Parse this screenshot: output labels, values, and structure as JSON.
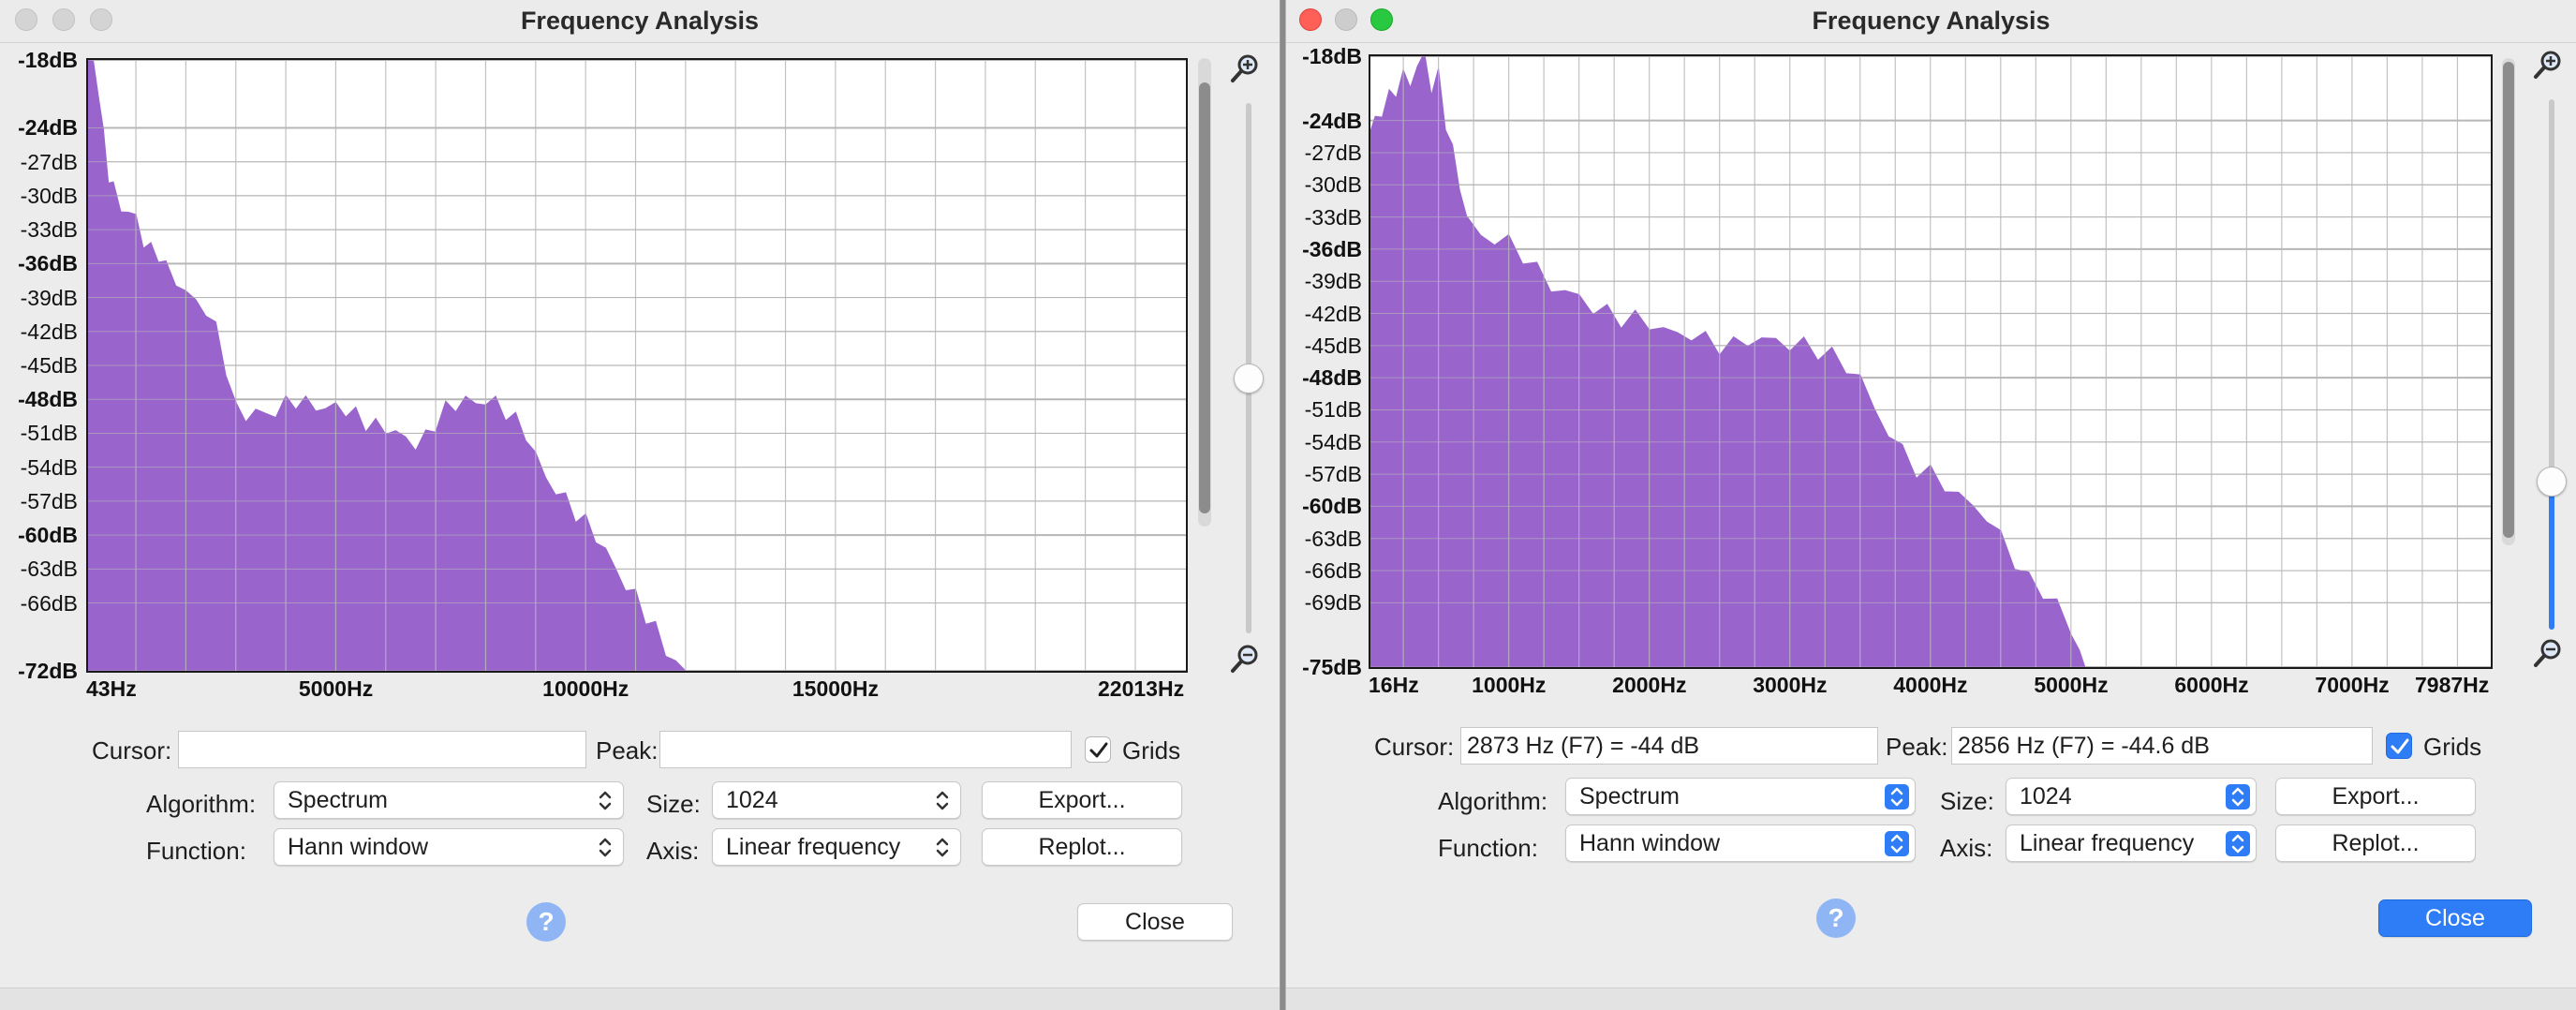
{
  "colors": {
    "spectrum": "#9a64cd",
    "grid": "#b7b7b7",
    "accent": "#2f7df6",
    "close_red": "#fe5f57",
    "max_green": "#28c840"
  },
  "windows": [
    {
      "title": "Frequency Analysis",
      "active": false,
      "controls": {
        "cursor_label": "Cursor:",
        "cursor_value": "",
        "peak_label": "Peak:",
        "peak_value": "",
        "grids_label": "Grids",
        "grids_checked": true,
        "algorithm_label": "Algorithm:",
        "algorithm_value": "Spectrum",
        "function_label": "Function:",
        "function_value": "Hann window",
        "size_label": "Size:",
        "size_value": "1024",
        "axis_label": "Axis:",
        "axis_value": "Linear frequency",
        "export_button": "Export...",
        "replot_button": "Replot...",
        "close_button": "Close",
        "help_icon": "question-mark-icon"
      },
      "zoom_level": 0.48,
      "chart_data": {
        "type": "area",
        "title": "",
        "xlabel": "",
        "ylabel": "",
        "xlim": [
          43,
          22013
        ],
        "ylim": [
          -72,
          -18
        ],
        "grid": true,
        "y_ticks": [
          {
            "label": "-18dB",
            "value": -18,
            "bold": true
          },
          {
            "label": "-24dB",
            "value": -24,
            "bold": true
          },
          {
            "label": "-27dB",
            "value": -27,
            "bold": false
          },
          {
            "label": "-30dB",
            "value": -30,
            "bold": false
          },
          {
            "label": "-33dB",
            "value": -33,
            "bold": false
          },
          {
            "label": "-36dB",
            "value": -36,
            "bold": true
          },
          {
            "label": "-39dB",
            "value": -39,
            "bold": false
          },
          {
            "label": "-42dB",
            "value": -42,
            "bold": false
          },
          {
            "label": "-45dB",
            "value": -45,
            "bold": false
          },
          {
            "label": "-48dB",
            "value": -48,
            "bold": true
          },
          {
            "label": "-51dB",
            "value": -51,
            "bold": false
          },
          {
            "label": "-54dB",
            "value": -54,
            "bold": false
          },
          {
            "label": "-57dB",
            "value": -57,
            "bold": false
          },
          {
            "label": "-60dB",
            "value": -60,
            "bold": true
          },
          {
            "label": "-63dB",
            "value": -63,
            "bold": false
          },
          {
            "label": "-66dB",
            "value": -66,
            "bold": false
          },
          {
            "label": "-72dB",
            "value": -72,
            "bold": true
          }
        ],
        "x_ticks": [
          {
            "label": "43Hz",
            "value": 43
          },
          {
            "label": "5000Hz",
            "value": 5000
          },
          {
            "label": "10000Hz",
            "value": 10000
          },
          {
            "label": "15000Hz",
            "value": 15000
          },
          {
            "label": "22013Hz",
            "value": 22013
          }
        ],
        "x_grid": [
          1000,
          2000,
          3000,
          4000,
          5000,
          6000,
          7000,
          8000,
          9000,
          10000,
          11000,
          12000,
          13000,
          14000,
          15000,
          16000,
          17000,
          18000,
          19000,
          20000,
          21000,
          22000
        ],
        "series": [
          {
            "x": [
              43,
              150,
              250,
              350,
              450,
              550,
              700,
              850,
              1000,
              1150,
              1300,
              1450,
              1600,
              1800,
              2000,
              2200,
              2400,
              2600,
              2800,
              3000,
              3200,
              3400,
              3600,
              3800,
              4000,
              4200,
              4400,
              4600,
              4800,
              5000,
              5200,
              5400,
              5600,
              5800,
              6000,
              6200,
              6400,
              6600,
              6800,
              7000,
              7200,
              7400,
              7600,
              7800,
              8000,
              8200,
              8400,
              8600,
              8800,
              9000,
              9200,
              9400,
              9600,
              9800,
              10000,
              10200,
              10400,
              10600,
              10800,
              11000,
              11200,
              11400,
              11600,
              11800,
              12000
            ],
            "values": [
              -18,
              -18.5,
              -20.5,
              -25,
              -28,
              -29.5,
              -31,
              -31.5,
              -32,
              -34,
              -35,
              -35,
              -36.5,
              -37.5,
              -38.5,
              -39.5,
              -40,
              -42,
              -45,
              -49,
              -49.5,
              -49,
              -49.5,
              -49,
              -48.5,
              -48,
              -48.5,
              -48.5,
              -49,
              -48.5,
              -49,
              -49.5,
              -50,
              -50.5,
              -50.5,
              -51,
              -51.5,
              -52,
              -51.5,
              -50,
              -49,
              -48.5,
              -48,
              -48.5,
              -48,
              -48.5,
              -49,
              -50,
              -51,
              -53,
              -55,
              -56,
              -57,
              -58,
              -59,
              -60,
              -61.5,
              -63,
              -64.5,
              -65.5,
              -67,
              -68.5,
              -70,
              -71.5,
              -72
            ]
          }
        ]
      }
    },
    {
      "title": "Frequency Analysis",
      "active": true,
      "controls": {
        "cursor_label": "Cursor:",
        "cursor_value": "2873 Hz (F7) = -44 dB",
        "peak_label": "Peak:",
        "peak_value": "2856 Hz (F7) = -44.6 dB",
        "grids_label": "Grids",
        "grids_checked": true,
        "algorithm_label": "Algorithm:",
        "algorithm_value": "Spectrum",
        "function_label": "Function:",
        "function_value": "Hann window",
        "size_label": "Size:",
        "size_value": "1024",
        "axis_label": "Axis:",
        "axis_value": "Linear frequency",
        "export_button": "Export...",
        "replot_button": "Replot...",
        "close_button": "Close",
        "help_icon": "question-mark-icon"
      },
      "zoom_level": 0.28,
      "chart_data": {
        "type": "area",
        "title": "",
        "xlabel": "",
        "ylabel": "",
        "xlim": [
          16,
          7987
        ],
        "ylim": [
          -75,
          -18
        ],
        "grid": true,
        "y_ticks": [
          {
            "label": "-18dB",
            "value": -18,
            "bold": true
          },
          {
            "label": "-24dB",
            "value": -24,
            "bold": true
          },
          {
            "label": "-27dB",
            "value": -27,
            "bold": false
          },
          {
            "label": "-30dB",
            "value": -30,
            "bold": false
          },
          {
            "label": "-33dB",
            "value": -33,
            "bold": false
          },
          {
            "label": "-36dB",
            "value": -36,
            "bold": true
          },
          {
            "label": "-39dB",
            "value": -39,
            "bold": false
          },
          {
            "label": "-42dB",
            "value": -42,
            "bold": false
          },
          {
            "label": "-45dB",
            "value": -45,
            "bold": false
          },
          {
            "label": "-48dB",
            "value": -48,
            "bold": true
          },
          {
            "label": "-51dB",
            "value": -51,
            "bold": false
          },
          {
            "label": "-54dB",
            "value": -54,
            "bold": false
          },
          {
            "label": "-57dB",
            "value": -57,
            "bold": false
          },
          {
            "label": "-60dB",
            "value": -60,
            "bold": true
          },
          {
            "label": "-63dB",
            "value": -63,
            "bold": false
          },
          {
            "label": "-66dB",
            "value": -66,
            "bold": false
          },
          {
            "label": "-69dB",
            "value": -69,
            "bold": false
          },
          {
            "label": "-75dB",
            "value": -75,
            "bold": true
          }
        ],
        "x_ticks": [
          {
            "label": "16Hz",
            "value": 16
          },
          {
            "label": "1000Hz",
            "value": 1000
          },
          {
            "label": "2000Hz",
            "value": 2000
          },
          {
            "label": "3000Hz",
            "value": 3000
          },
          {
            "label": "4000Hz",
            "value": 4000
          },
          {
            "label": "5000Hz",
            "value": 5000
          },
          {
            "label": "6000Hz",
            "value": 6000
          },
          {
            "label": "7000Hz",
            "value": 7000
          },
          {
            "label": "7987Hz",
            "value": 7987
          }
        ],
        "x_grid": [
          250,
          500,
          750,
          1000,
          1250,
          1500,
          1750,
          2000,
          2250,
          2500,
          2750,
          3000,
          3250,
          3500,
          3750,
          4000,
          4250,
          4500,
          4750,
          5000,
          5250,
          5500,
          5750,
          6000,
          6250,
          6500,
          6750,
          7000,
          7250,
          7500,
          7750
        ],
        "series": [
          {
            "x": [
              16,
              50,
              100,
              150,
              200,
              250,
              300,
              350,
              400,
              450,
              500,
              550,
              600,
              650,
              700,
              800,
              900,
              1000,
              1100,
              1200,
              1300,
              1400,
              1500,
              1600,
              1700,
              1800,
              1900,
              2000,
              2100,
              2200,
              2300,
              2400,
              2500,
              2600,
              2700,
              2800,
              2900,
              3000,
              3100,
              3200,
              3300,
              3400,
              3500,
              3600,
              3700,
              3800,
              3900,
              4000,
              4100,
              4200,
              4300,
              4400,
              4500,
              4600,
              4700,
              4800,
              4900,
              5000,
              5060,
              5100
            ],
            "values": [
              -25,
              -24,
              -23,
              -22,
              -21,
              -20,
              -20.5,
              -19,
              -18,
              -21,
              -20,
              -24,
              -27,
              -30,
              -33,
              -35,
              -35,
              -35.5,
              -36.5,
              -38,
              -39.5,
              -40,
              -40.5,
              -41.5,
              -42,
              -42.5,
              -42.5,
              -43,
              -43.5,
              -44,
              -44,
              -44.5,
              -45,
              -45,
              -44.5,
              -44.5,
              -44.5,
              -45,
              -45,
              -45.5,
              -46,
              -47,
              -48,
              -51,
              -53,
              -55,
              -56.5,
              -57,
              -58,
              -59,
              -60,
              -61,
              -63,
              -65,
              -67,
              -68,
              -69,
              -72,
              -73,
              -75
            ]
          }
        ]
      }
    }
  ]
}
